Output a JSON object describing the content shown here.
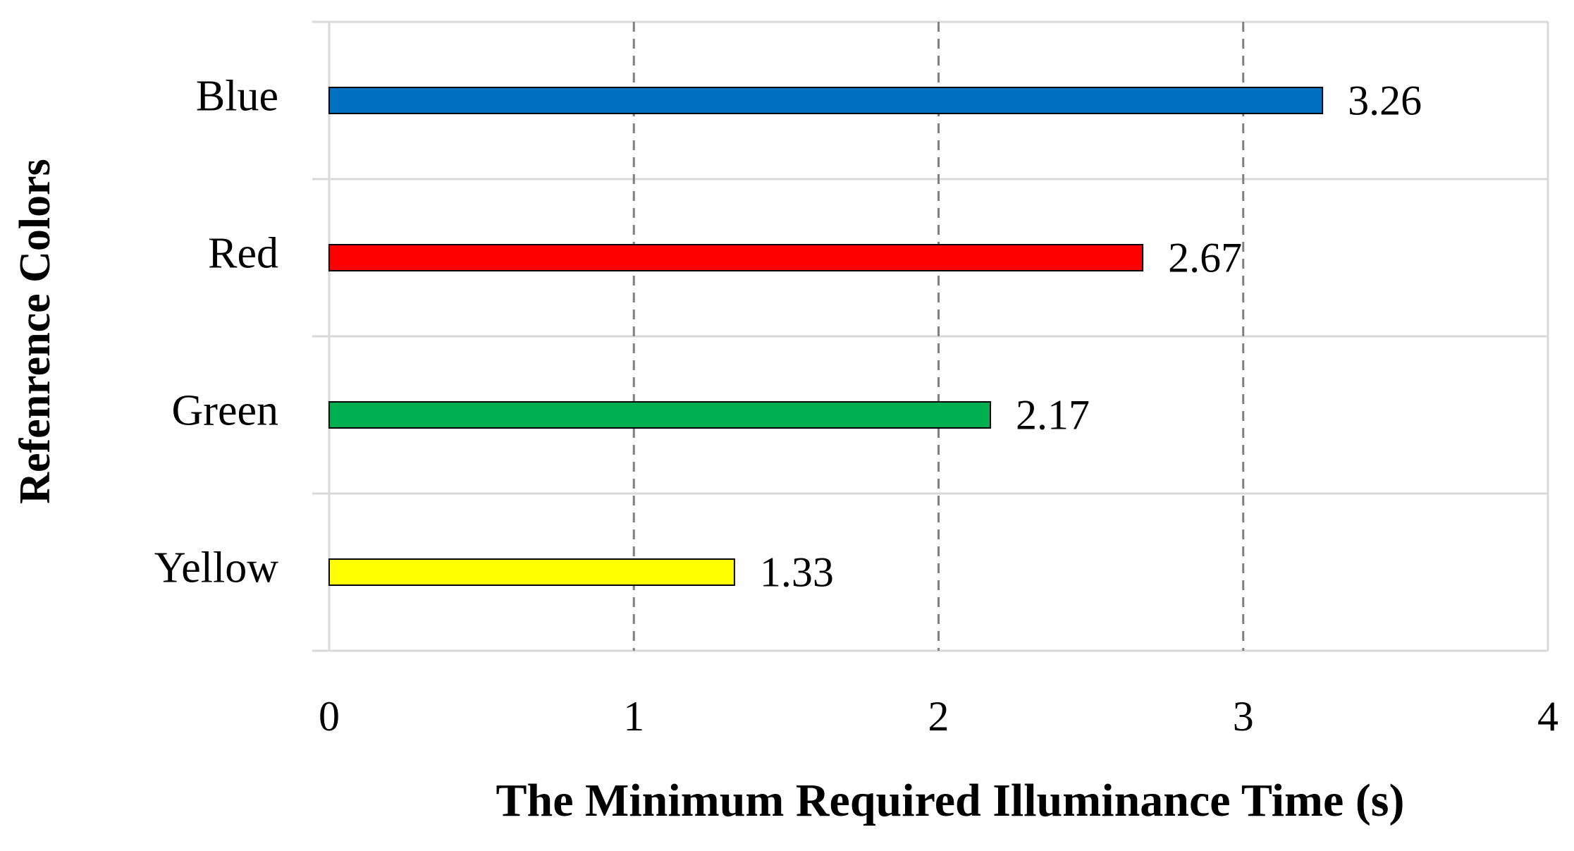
{
  "chart_data": {
    "type": "bar",
    "orientation": "horizontal",
    "xlabel": "The Minimum Required Illuminance Time (s)",
    "ylabel": "Refenrence Colors",
    "categories": [
      "Blue",
      "Red",
      "Green",
      "Yellow"
    ],
    "values": [
      3.26,
      2.67,
      2.17,
      1.33
    ],
    "colors": [
      "#0070c0",
      "#ff0000",
      "#00b050",
      "#ffff00"
    ],
    "xlim": [
      0,
      4
    ],
    "xticks": [
      0,
      1,
      2,
      3,
      4
    ],
    "grid": true
  }
}
